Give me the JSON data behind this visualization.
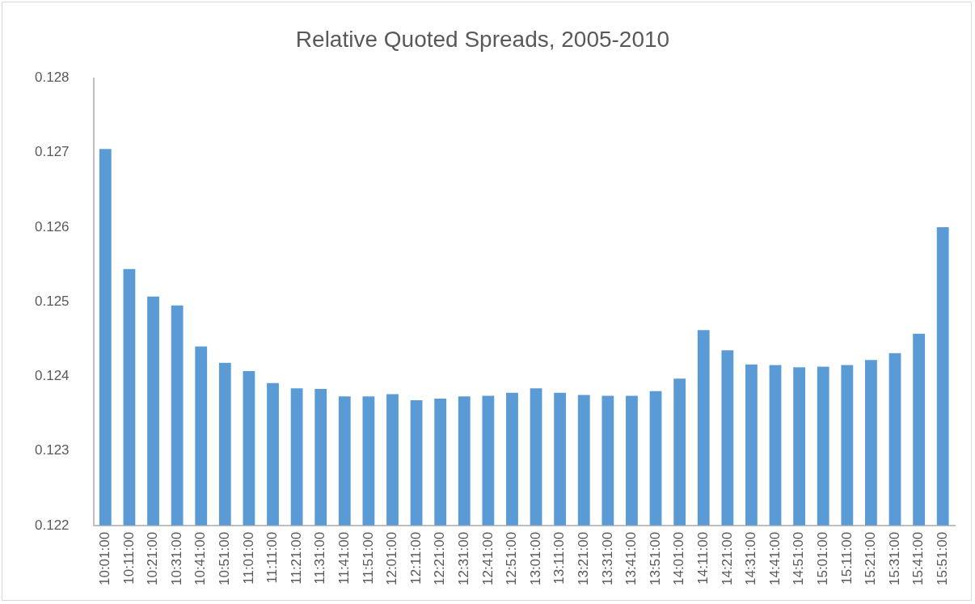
{
  "chart_data": {
    "type": "bar",
    "title": "Relative Quoted Spreads, 2005-2010",
    "categories": [
      "10:01:00",
      "10:11:00",
      "10:21:00",
      "10:31:00",
      "10:41:00",
      "10:51:00",
      "11:01:00",
      "11:11:00",
      "11:21:00",
      "11:31:00",
      "11:41:00",
      "11:51:00",
      "12:01:00",
      "12:11:00",
      "12:21:00",
      "12:31:00",
      "12:41:00",
      "12:51:00",
      "13:01:00",
      "13:11:00",
      "13:21:00",
      "13:31:00",
      "13:41:00",
      "13:51:00",
      "14:01:00",
      "14:11:00",
      "14:21:00",
      "14:31:00",
      "14:41:00",
      "14:51:00",
      "15:01:00",
      "15:11:00",
      "15:21:00",
      "15:31:00",
      "15:41:00",
      "15:51:00"
    ],
    "values": [
      0.12705,
      0.12544,
      0.12507,
      0.12495,
      0.1244,
      0.12418,
      0.12407,
      0.12391,
      0.12384,
      0.12383,
      0.12373,
      0.12373,
      0.12376,
      0.12368,
      0.1237,
      0.12373,
      0.12374,
      0.12378,
      0.12384,
      0.12378,
      0.12375,
      0.12374,
      0.12374,
      0.1238,
      0.12397,
      0.12462,
      0.12435,
      0.12416,
      0.12415,
      0.12412,
      0.12413,
      0.12415,
      0.12422,
      0.12431,
      0.12457,
      0.126
    ],
    "color": "#5b9bd5",
    "ylim": [
      0.122,
      0.128
    ],
    "yticks": [
      0.122,
      0.123,
      0.124,
      0.125,
      0.126,
      0.127,
      0.128
    ],
    "grid": false,
    "legend": false
  }
}
